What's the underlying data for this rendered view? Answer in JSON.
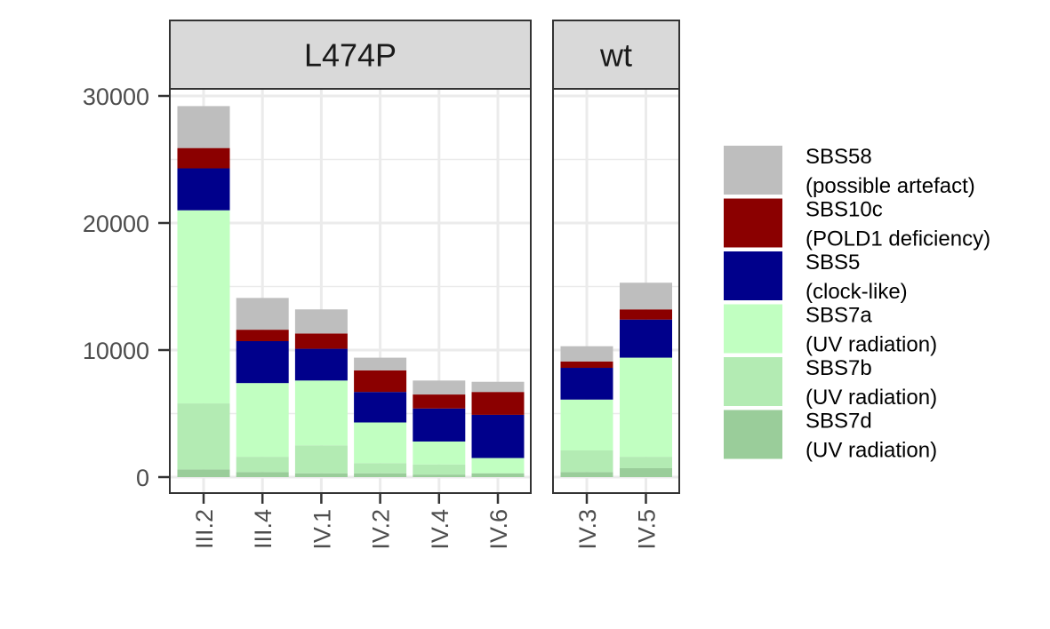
{
  "chart_data": {
    "type": "bar",
    "stacked": true,
    "title": "",
    "xlabel": "",
    "ylabel": "",
    "ylim": [
      0,
      30000
    ],
    "yticks": [
      0,
      10000,
      20000,
      30000
    ],
    "grid": true,
    "legend_position": "right",
    "facets": [
      {
        "name": "L474P",
        "categories": [
          "III.2",
          "III.4",
          "IV.1",
          "IV.2",
          "IV.4",
          "IV.6"
        ]
      },
      {
        "name": "wt",
        "categories": [
          "IV.3",
          "IV.5"
        ]
      }
    ],
    "series": [
      {
        "name": "SBS7d",
        "desc": "(UV radiation)",
        "color": "#9ACD9A",
        "values": [
          600,
          400,
          300,
          300,
          200,
          300,
          400,
          700
        ]
      },
      {
        "name": "SBS7b",
        "desc": "(UV radiation)",
        "color": "#B3EBB3",
        "values": [
          5200,
          1200,
          2200,
          800,
          800,
          0,
          1700,
          900
        ]
      },
      {
        "name": "SBS7a",
        "desc": "(UV radiation)",
        "color": "#C1FFC1",
        "values": [
          15200,
          5800,
          5100,
          3200,
          1800,
          1200,
          4000,
          7800
        ]
      },
      {
        "name": "SBS5",
        "desc": "(clock-like)",
        "color": "#00008B",
        "values": [
          3300,
          3300,
          2500,
          2400,
          2600,
          3400,
          2500,
          3000
        ]
      },
      {
        "name": "SBS10c",
        "desc": "(POLD1 deficiency)",
        "color": "#8B0000",
        "values": [
          1600,
          900,
          1200,
          1700,
          1100,
          1800,
          500,
          800
        ]
      },
      {
        "name": "SBS58",
        "desc": "(possible artefact)",
        "color": "#BEBEBE",
        "values": [
          3300,
          2500,
          1900,
          1000,
          1100,
          800,
          1200,
          2100
        ]
      }
    ],
    "legend_order": [
      "SBS58",
      "SBS10c",
      "SBS5",
      "SBS7a",
      "SBS7b",
      "SBS7d"
    ]
  },
  "style": {
    "strip_fill": "#D9D9D9",
    "panel_border": "#333333",
    "grid_color": "#EBEBEB",
    "tick_color": "#333333",
    "tick_label_color": "#4D4D4D"
  }
}
